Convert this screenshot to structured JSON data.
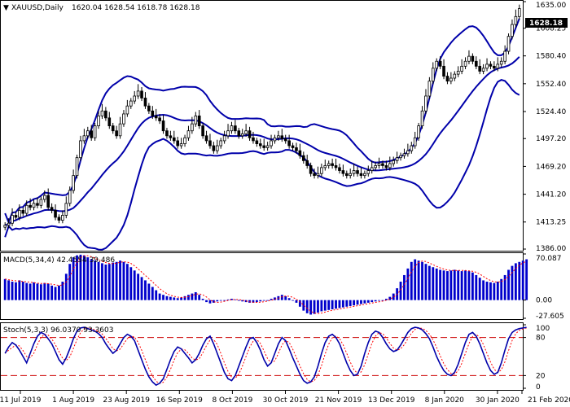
{
  "header": {
    "symbol": "XAUUSD,Daily",
    "ohlc": "1620.04 1628.54 1618.78 1628.18"
  },
  "current_price": "1628.18",
  "colors": {
    "candle": "#000000",
    "bands": "#0000aa",
    "macd_hist": "#0000cc",
    "macd_signal": "#ff0000",
    "stoch_main": "#0000aa",
    "stoch_signal": "#ff0000",
    "level_line": "#cc0000",
    "price_tag": "#000000"
  },
  "chart_data": [
    {
      "type": "candlestick",
      "panel": "price",
      "ylim": [
        1386.0,
        1635.0
      ],
      "y_ticks": [
        "1635.00",
        "1608.25",
        "1580.40",
        "1552.40",
        "1524.40",
        "1497.20",
        "1469.20",
        "1441.20",
        "1413.25",
        "1386.00"
      ],
      "x_ticks": [
        "11 Jul 2019",
        "1 Aug 2019",
        "23 Aug 2019",
        "16 Sep 2019",
        "8 Oct 2019",
        "30 Oct 2019",
        "21 Nov 2019",
        "13 Dec 2019",
        "8 Jan 2020",
        "30 Jan 2020",
        "21 Feb 2020"
      ],
      "close_path": [
        1410,
        1412,
        1420,
        1418,
        1425,
        1422,
        1430,
        1428,
        1432,
        1430,
        1436,
        1440,
        1428,
        1425,
        1418,
        1415,
        1420,
        1432,
        1445,
        1460,
        1478,
        1495,
        1500,
        1505,
        1498,
        1510,
        1520,
        1525,
        1518,
        1510,
        1505,
        1500,
        1512,
        1522,
        1530,
        1535,
        1540,
        1545,
        1538,
        1530,
        1525,
        1520,
        1518,
        1515,
        1505,
        1500,
        1498,
        1495,
        1490,
        1492,
        1498,
        1505,
        1512,
        1520,
        1510,
        1500,
        1495,
        1490,
        1485,
        1490,
        1495,
        1500,
        1505,
        1510,
        1505,
        1500,
        1502,
        1505,
        1498,
        1495,
        1492,
        1490,
        1488,
        1490,
        1495,
        1498,
        1500,
        1497,
        1495,
        1490,
        1488,
        1485,
        1480,
        1475,
        1470,
        1462,
        1460,
        1462,
        1468,
        1470,
        1472,
        1470,
        1468,
        1465,
        1462,
        1460,
        1462,
        1465,
        1462,
        1460,
        1462,
        1465,
        1468,
        1470,
        1472,
        1470,
        1468,
        1472,
        1475,
        1478,
        1480,
        1482,
        1485,
        1490,
        1498,
        1510,
        1525,
        1540,
        1555,
        1568,
        1575,
        1570,
        1560,
        1555,
        1558,
        1562,
        1565,
        1570,
        1575,
        1580,
        1575,
        1570,
        1565,
        1568,
        1572,
        1570,
        1568,
        1572,
        1575,
        1585,
        1600,
        1612,
        1620,
        1628
      ]
    },
    {
      "type": "histogram",
      "panel": "macd",
      "label": "MACD(5,34,4) 42.4554 39.486",
      "ylim": [
        -27.605,
        70.087
      ],
      "y_ticks": [
        "70.087",
        "0.00",
        "-27.605"
      ],
      "values": [
        32,
        30,
        28,
        27,
        30,
        28,
        26,
        25,
        27,
        25,
        24,
        26,
        25,
        22,
        20,
        22,
        28,
        40,
        55,
        65,
        68,
        69,
        68,
        65,
        62,
        60,
        58,
        56,
        54,
        55,
        57,
        58,
        60,
        58,
        55,
        50,
        45,
        40,
        35,
        30,
        25,
        20,
        15,
        10,
        8,
        6,
        5,
        4,
        3,
        4,
        6,
        8,
        10,
        12,
        8,
        2,
        -3,
        -5,
        -4,
        -2,
        -1,
        0,
        1,
        2,
        1,
        -1,
        -2,
        -3,
        -4,
        -4,
        -3,
        -2,
        -1,
        0,
        2,
        4,
        6,
        8,
        6,
        3,
        0,
        -4,
        -10,
        -16,
        -20,
        -22,
        -21,
        -19,
        -17,
        -16,
        -15,
        -14,
        -13,
        -12,
        -11,
        -10,
        -9,
        -8,
        -7,
        -6,
        -5,
        -4,
        -3,
        -2,
        -1,
        0,
        2,
        5,
        10,
        18,
        28,
        38,
        48,
        58,
        62,
        60,
        58,
        55,
        52,
        50,
        48,
        46,
        45,
        44,
        45,
        46,
        45,
        44,
        45,
        44,
        42,
        38,
        34,
        30,
        28,
        27,
        26,
        28,
        32,
        38,
        46,
        52,
        56,
        58,
        60,
        62
      ]
    },
    {
      "type": "line",
      "panel": "stochastic",
      "label": "Stoch(5,3,3) 96.0370 93.3603",
      "ylim": [
        0,
        100
      ],
      "y_ticks": [
        "100",
        "80",
        "20",
        "0"
      ],
      "levels": [
        80,
        20
      ],
      "main_values": [
        55,
        65,
        72,
        68,
        60,
        50,
        40,
        55,
        70,
        82,
        88,
        85,
        78,
        70,
        58,
        45,
        38,
        48,
        62,
        78,
        90,
        95,
        96,
        94,
        92,
        90,
        86,
        80,
        70,
        62,
        55,
        60,
        70,
        80,
        85,
        82,
        75,
        60,
        45,
        30,
        18,
        10,
        5,
        8,
        15,
        30,
        45,
        58,
        65,
        62,
        55,
        48,
        40,
        45,
        55,
        68,
        78,
        82,
        70,
        55,
        40,
        25,
        15,
        12,
        20,
        35,
        50,
        65,
        78,
        80,
        72,
        60,
        45,
        35,
        40,
        55,
        70,
        80,
        75,
        62,
        48,
        35,
        22,
        12,
        8,
        10,
        18,
        35,
        55,
        72,
        82,
        85,
        80,
        70,
        55,
        40,
        28,
        20,
        22,
        35,
        55,
        72,
        85,
        90,
        88,
        80,
        70,
        62,
        58,
        60,
        68,
        78,
        88,
        94,
        96,
        95,
        92,
        86,
        78,
        65,
        50,
        38,
        28,
        22,
        20,
        25,
        38,
        55,
        72,
        85,
        88,
        82,
        70,
        55,
        40,
        28,
        22,
        25,
        40,
        60,
        78,
        88,
        92,
        94,
        95,
        96
      ]
    }
  ]
}
